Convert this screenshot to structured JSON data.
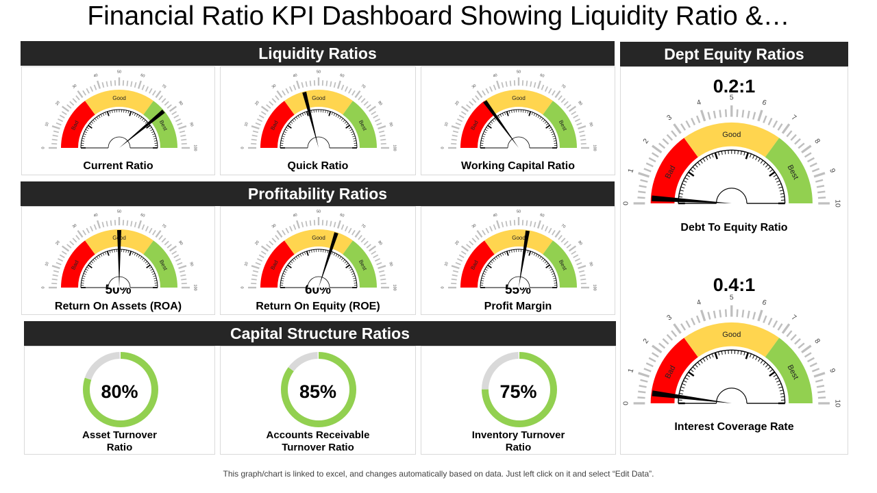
{
  "title": "Financial Ratio KPI Dashboard Showing Liquidity Ratio &…",
  "footer": "This graph/chart is linked to excel, and changes automatically based on data. Just left click on it and select “Edit Data”.",
  "colors": {
    "bad": "#ff0000",
    "good": "#ffd54f",
    "best": "#92d050",
    "header": "#262626",
    "donut_rest": "#d9d9d9"
  },
  "band_labels": {
    "bad": "Bad",
    "good": "Good",
    "best": "Best"
  },
  "liquidity": {
    "header": "Liquidity Ratios",
    "gauges": [
      {
        "label": "Current Ratio",
        "value": 78
      },
      {
        "label": "Quick Ratio",
        "value": 42
      },
      {
        "label": "Working Capital Ratio",
        "value": 30
      }
    ]
  },
  "profitability": {
    "header": "Profitability Ratios",
    "gauges": [
      {
        "label": "Return On Assets (ROA)",
        "value": 50,
        "display": "50%"
      },
      {
        "label": "Return On Equity (ROE)",
        "value": 60,
        "display": "60%"
      },
      {
        "label": "Profit Margin",
        "value": 55,
        "display": "55%"
      }
    ]
  },
  "capital": {
    "header": "Capital Structure Ratios",
    "donuts": [
      {
        "label1": "Asset Turnover",
        "label2": "Ratio",
        "value": 80,
        "display": "80%"
      },
      {
        "label1": "Accounts Receivable",
        "label2": "Turnover Ratio",
        "value": 85,
        "display": "85%"
      },
      {
        "label1": "Inventory Turnover",
        "label2": "Ratio",
        "value": 75,
        "display": "75%"
      }
    ]
  },
  "debt": {
    "header": "Dept Equity Ratios",
    "gauges": [
      {
        "label": "Debt To Equity Ratio",
        "value": 0.2,
        "display": "0.2:1"
      },
      {
        "label": "Interest Coverage Rate",
        "value": 0.4,
        "display": "0.4:1"
      }
    ]
  },
  "scales": {
    "small_ticks": [
      "0",
      "10",
      "20",
      "30",
      "40",
      "50",
      "60",
      "70",
      "80",
      "90",
      "100"
    ],
    "big_ticks": [
      "0",
      "1",
      "2",
      "3",
      "4",
      "5",
      "6",
      "7",
      "8",
      "9",
      "10"
    ]
  }
}
